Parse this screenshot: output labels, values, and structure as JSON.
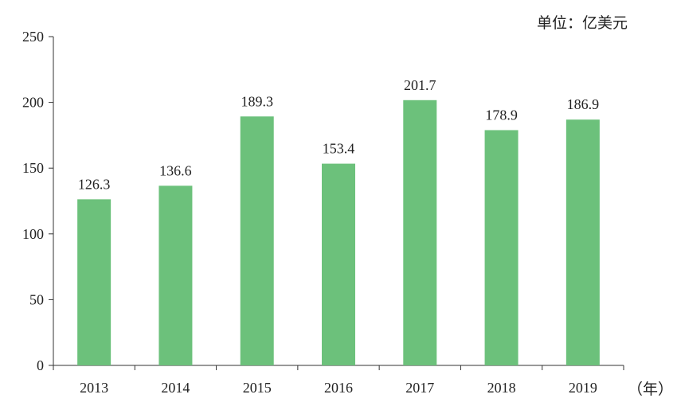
{
  "unit_label": "单位：亿美元",
  "x_unit_label": "（年）",
  "colors": {
    "bar": "#6cc17b",
    "axis": "#333333",
    "text": "#222222"
  },
  "chart_data": {
    "type": "bar",
    "categories": [
      "2013",
      "2014",
      "2015",
      "2016",
      "2017",
      "2018",
      "2019"
    ],
    "values": [
      126.3,
      136.6,
      189.3,
      153.4,
      201.7,
      178.9,
      186.9
    ],
    "data_labels": [
      "126.3",
      "136.6",
      "189.3",
      "153.4",
      "201.7",
      "178.9",
      "186.9"
    ],
    "title": "",
    "xlabel": "（年）",
    "ylabel": "单位：亿美元",
    "ylim": [
      0,
      250
    ],
    "yticks": [
      0,
      50,
      100,
      150,
      200,
      250
    ],
    "grid": false,
    "legend": "none"
  }
}
